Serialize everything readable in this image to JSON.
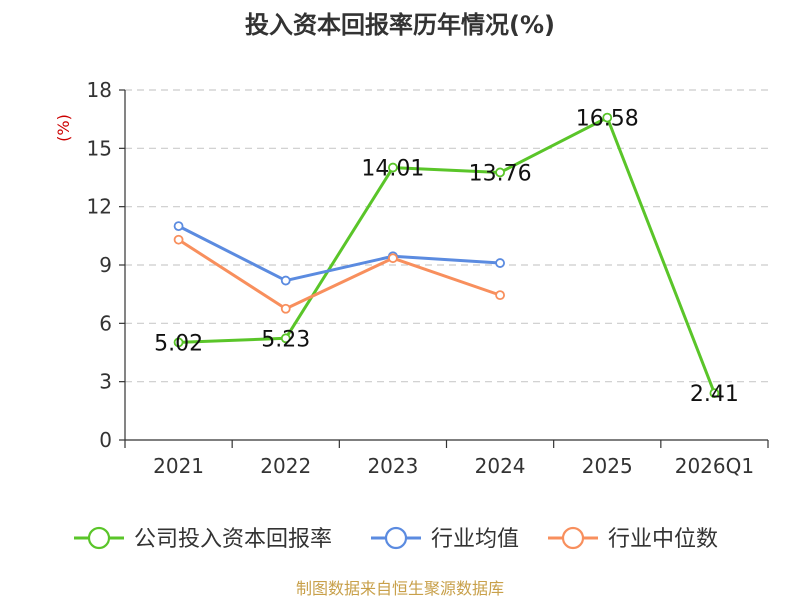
{
  "chart_data": {
    "type": "line",
    "title": "投入资本回报率历年情况(%)",
    "ylabel": "(%)",
    "xlabel": "",
    "categories": [
      "2021",
      "2022",
      "2023",
      "2024",
      "2025",
      "2026Q1"
    ],
    "yticks": [
      "0",
      "3",
      "6",
      "9",
      "12",
      "15",
      "18"
    ],
    "ylim": [
      0,
      18
    ],
    "grid": true,
    "legend_position": "bottom",
    "series": [
      {
        "name": "公司投入资本回报率",
        "color": "#5ac529",
        "values": [
          5.02,
          5.23,
          14.01,
          13.76,
          16.58,
          2.41
        ],
        "labels": [
          "5.02",
          "5.23",
          "14.01",
          "13.76",
          "16.58",
          "2.41"
        ],
        "show_labels": true
      },
      {
        "name": "行业均值",
        "color": "#5b8be0",
        "values": [
          11.0,
          8.2,
          9.45,
          9.1,
          null,
          null
        ],
        "show_labels": false
      },
      {
        "name": "行业中位数",
        "color": "#f88f5d",
        "values": [
          10.3,
          6.75,
          9.35,
          7.45,
          null,
          null
        ],
        "show_labels": false
      }
    ]
  },
  "source_text": "制图数据来自恒生聚源数据库",
  "colors": {
    "axis": "#333333",
    "grid": "#cccccc",
    "unit": "#cc0000",
    "source": "#c8a04a"
  }
}
